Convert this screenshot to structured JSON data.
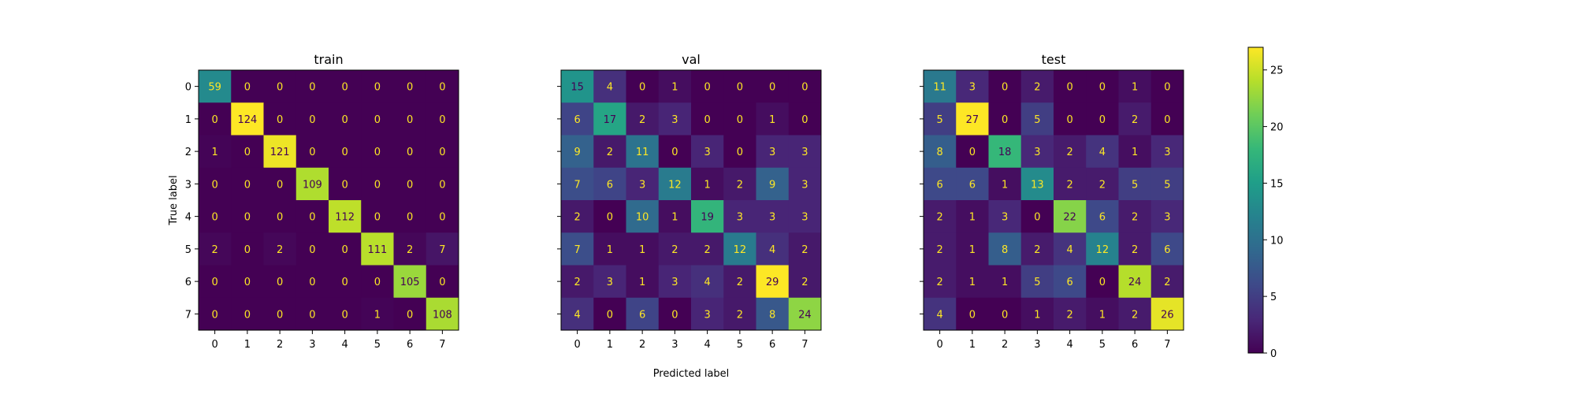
{
  "chart_data": [
    {
      "type": "heatmap",
      "title": "train",
      "labels": [
        "0",
        "1",
        "2",
        "3",
        "4",
        "5",
        "6",
        "7"
      ],
      "matrix": [
        [
          59,
          0,
          0,
          0,
          0,
          0,
          0,
          0
        ],
        [
          0,
          124,
          0,
          0,
          0,
          0,
          0,
          0
        ],
        [
          1,
          0,
          121,
          0,
          0,
          0,
          0,
          0
        ],
        [
          0,
          0,
          0,
          109,
          0,
          0,
          0,
          0
        ],
        [
          0,
          0,
          0,
          0,
          112,
          0,
          0,
          0
        ],
        [
          2,
          0,
          2,
          0,
          0,
          111,
          2,
          7
        ],
        [
          0,
          0,
          0,
          0,
          0,
          0,
          105,
          0
        ],
        [
          0,
          0,
          0,
          0,
          0,
          1,
          0,
          108
        ]
      ],
      "ylabel": "True label"
    },
    {
      "type": "heatmap",
      "title": "val",
      "labels": [
        "0",
        "1",
        "2",
        "3",
        "4",
        "5",
        "6",
        "7"
      ],
      "matrix": [
        [
          15,
          4,
          0,
          1,
          0,
          0,
          0,
          0
        ],
        [
          6,
          17,
          2,
          3,
          0,
          0,
          1,
          0
        ],
        [
          9,
          2,
          11,
          0,
          3,
          0,
          3,
          3
        ],
        [
          7,
          6,
          3,
          12,
          1,
          2,
          9,
          3
        ],
        [
          2,
          0,
          10,
          1,
          19,
          3,
          3,
          3
        ],
        [
          7,
          1,
          1,
          2,
          2,
          12,
          4,
          2
        ],
        [
          2,
          3,
          1,
          3,
          4,
          2,
          29,
          2
        ],
        [
          4,
          0,
          6,
          0,
          3,
          2,
          8,
          24
        ]
      ],
      "xlabel": "Predicted label"
    },
    {
      "type": "heatmap",
      "title": "test",
      "labels": [
        "0",
        "1",
        "2",
        "3",
        "4",
        "5",
        "6",
        "7"
      ],
      "matrix": [
        [
          11,
          3,
          0,
          2,
          0,
          0,
          1,
          0
        ],
        [
          5,
          27,
          0,
          5,
          0,
          0,
          2,
          0
        ],
        [
          8,
          0,
          18,
          3,
          2,
          4,
          1,
          3
        ],
        [
          6,
          6,
          1,
          13,
          2,
          2,
          5,
          5
        ],
        [
          2,
          1,
          3,
          0,
          22,
          6,
          2,
          3
        ],
        [
          2,
          1,
          8,
          2,
          4,
          12,
          2,
          6
        ],
        [
          2,
          1,
          1,
          5,
          6,
          0,
          24,
          2
        ],
        [
          4,
          0,
          0,
          1,
          2,
          1,
          2,
          26
        ]
      ]
    }
  ],
  "colorbar": {
    "colormap": "viridis",
    "range": [
      0,
      27
    ],
    "ticks": [
      "0",
      "5",
      "10",
      "15",
      "20",
      "25"
    ]
  },
  "cell_text_colors": {
    "light": "#fde725",
    "dark": "#440154"
  }
}
